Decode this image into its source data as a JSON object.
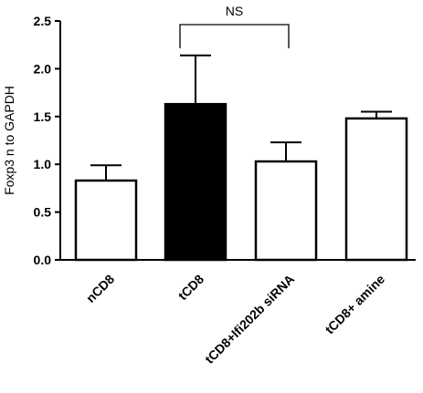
{
  "chart_data": {
    "type": "bar",
    "title": "",
    "xlabel": "",
    "ylabel": "Foxp3 n to GAPDH",
    "ylim": [
      0,
      2.5
    ],
    "yticks": [
      "0.0",
      "0.5",
      "1.0",
      "1.5",
      "2.0",
      "2.5"
    ],
    "grid": false,
    "categories": [
      "nCD8",
      "tCD8",
      "tCD8+Ifi202b siRNA",
      "tCD8+ amine"
    ],
    "values": [
      0.83,
      1.63,
      1.03,
      1.48
    ],
    "errors": [
      0.16,
      0.51,
      0.2,
      0.07
    ],
    "fills": [
      "#ffffff",
      "#000000",
      "#ffffff",
      "#ffffff"
    ],
    "annotations": [
      {
        "text": "NS",
        "between": [
          "tCD8",
          "tCD8+Ifi202b siRNA"
        ]
      }
    ]
  }
}
